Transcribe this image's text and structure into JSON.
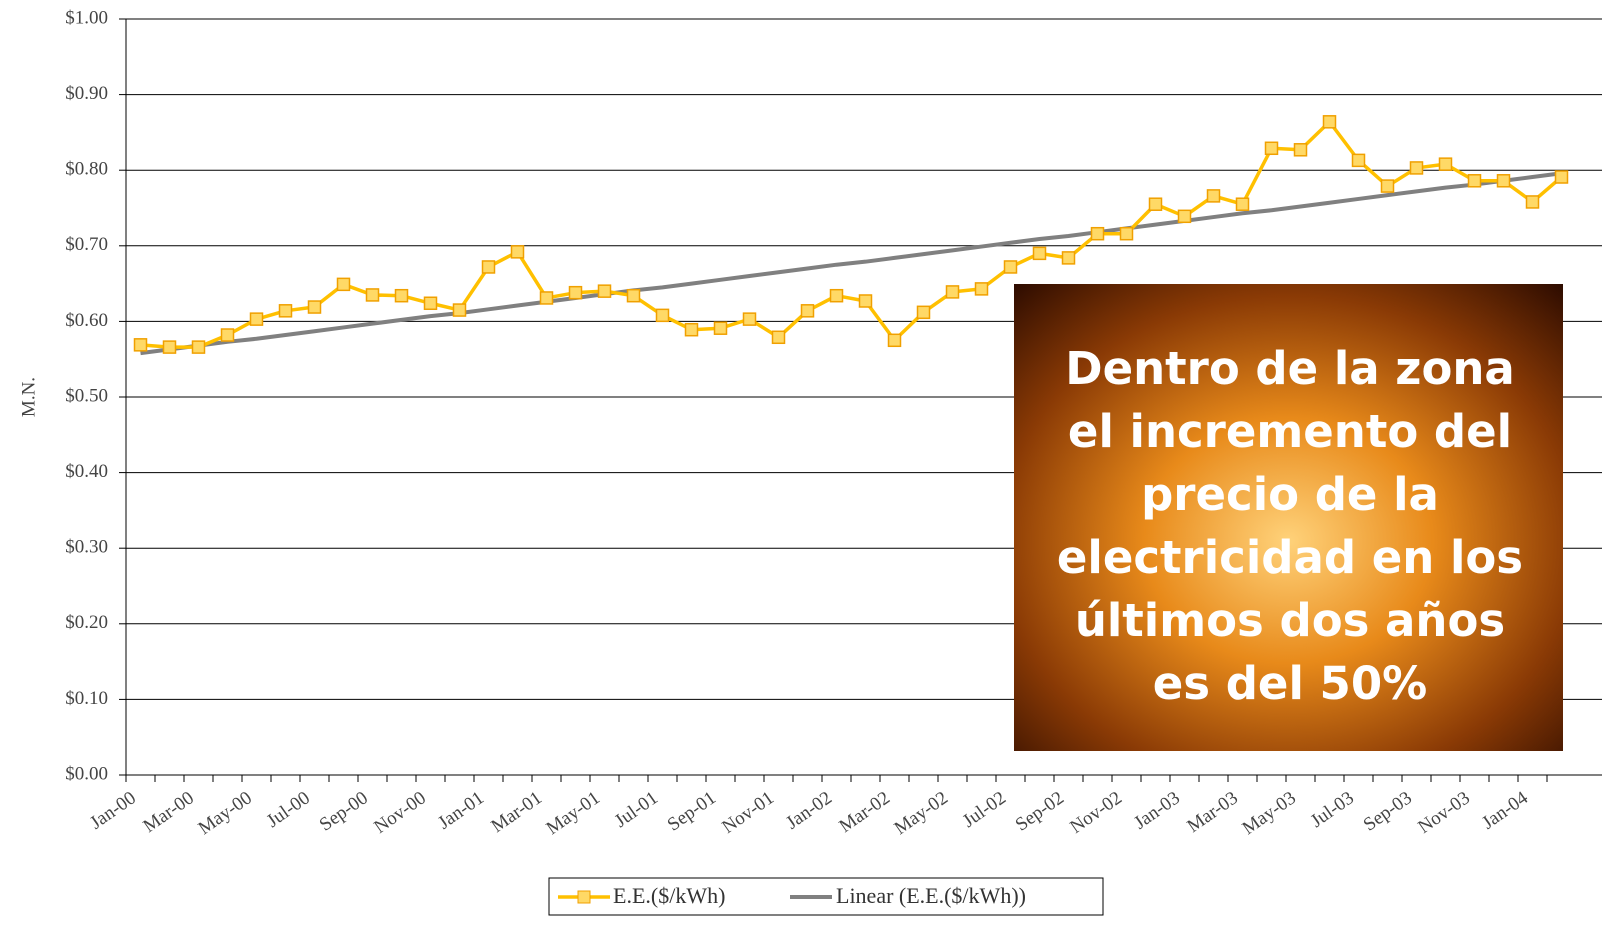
{
  "chart_data": {
    "type": "line",
    "y_label": "M.N.",
    "categories": [
      "Jan-00",
      null,
      "Mar-00",
      null,
      "May-00",
      null,
      "Jul-00",
      null,
      "Sep-00",
      null,
      "Nov-00",
      null,
      "Jan-01",
      null,
      "Mar-01",
      null,
      "May-01",
      null,
      "Jul-01",
      null,
      "Sep-01",
      null,
      "Nov-01",
      null,
      "Jan-02",
      null,
      "Mar-02",
      null,
      "May-02",
      null,
      "Jul-02",
      null,
      "Sep-02",
      null,
      "Nov-02",
      null,
      "Jan-03",
      null,
      "Mar-03",
      null,
      "May-03",
      null,
      "Jul-03",
      null,
      "Sep-03",
      null,
      "Nov-03",
      null,
      "Jan-04",
      null
    ],
    "series": [
      {
        "name": "E.E.($/kWh)",
        "color": "#FFC000",
        "marker_fill": "#FFD966",
        "marker_stroke": "#F0A000",
        "values": [
          0.569,
          0.566,
          0.566,
          0.582,
          0.603,
          0.614,
          0.619,
          0.649,
          0.635,
          0.634,
          0.624,
          0.615,
          0.672,
          0.692,
          0.631,
          0.638,
          0.64,
          0.634,
          0.608,
          0.589,
          0.591,
          0.603,
          0.579,
          0.614,
          0.634,
          0.627,
          0.575,
          0.612,
          0.639,
          0.643,
          0.672,
          0.69,
          0.684,
          0.716,
          0.716,
          0.755,
          0.739,
          0.766,
          0.755,
          0.829,
          0.827,
          0.864,
          0.813,
          0.779,
          0.803,
          0.808,
          0.786,
          0.786,
          0.758,
          0.791
        ]
      },
      {
        "name": "Linear (E.E.($/kWh))",
        "color": "#808080",
        "values": [
          0.558,
          0.563,
          0.568,
          0.573,
          0.577,
          0.582,
          0.587,
          0.592,
          0.597,
          0.602,
          0.607,
          0.611,
          0.616,
          0.621,
          0.626,
          0.631,
          0.636,
          0.641,
          0.645,
          0.65,
          0.655,
          0.66,
          0.665,
          0.67,
          0.675,
          0.679,
          0.684,
          0.689,
          0.694,
          0.699,
          0.704,
          0.709,
          0.713,
          0.718,
          0.723,
          0.728,
          0.733,
          0.738,
          0.743,
          0.747,
          0.752,
          0.757,
          0.762,
          0.767,
          0.772,
          0.777,
          0.781,
          0.786,
          0.791,
          0.796
        ]
      }
    ],
    "ylim": [
      0,
      1
    ],
    "yticks": [
      {
        "value": 0,
        "label": "$0.00"
      },
      {
        "value": 0.1,
        "label": "$0.10"
      },
      {
        "value": 0.2,
        "label": "$0.20"
      },
      {
        "value": 0.3,
        "label": "$0.30"
      },
      {
        "value": 0.4,
        "label": "$0.40"
      },
      {
        "value": 0.5,
        "label": "$0.50"
      },
      {
        "value": 0.6,
        "label": "$0.60"
      },
      {
        "value": 0.7,
        "label": "$0.70"
      },
      {
        "value": 0.8,
        "label": "$0.80"
      },
      {
        "value": 0.9,
        "label": "$0.90"
      },
      {
        "value": 1,
        "label": "$1.00"
      }
    ],
    "grid": true,
    "legend": "bottom",
    "annotation": [
      "Dentro de la zona",
      "el incremento del",
      "precio de la",
      "electricidad en los",
      "últimos dos años",
      "es del 50%"
    ]
  }
}
